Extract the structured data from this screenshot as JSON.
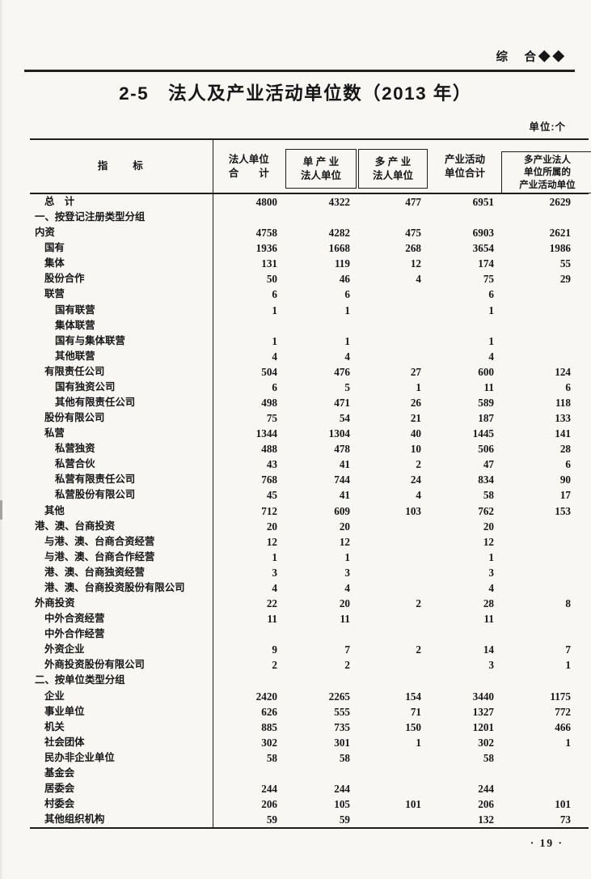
{
  "page": {
    "category_header": "综　合◆◆",
    "title": "2-5　法人及产业活动单位数（2013 年）",
    "unit_note": "单位:个",
    "page_number": "· 19 ·"
  },
  "table": {
    "headers": {
      "indicator": "指　　标",
      "col1": "法人单位\n合　　计",
      "col2": "单 产 业\n法人单位",
      "col3": "多 产 业\n法人单位",
      "col4": "产业活动\n单位合计",
      "col5": "多产业法人\n单位所属的\n产业活动单位"
    },
    "rows": [
      {
        "label": "总　计",
        "indent": 1,
        "values": [
          "4800",
          "4322",
          "477",
          "6951",
          "2629"
        ]
      },
      {
        "label": "一、按登记注册类型分组",
        "indent": 0,
        "values": [
          "",
          "",
          "",
          "",
          ""
        ]
      },
      {
        "label": "内资",
        "indent": 0,
        "values": [
          "4758",
          "4282",
          "475",
          "6903",
          "2621"
        ]
      },
      {
        "label": "国有",
        "indent": 1,
        "values": [
          "1936",
          "1668",
          "268",
          "3654",
          "1986"
        ]
      },
      {
        "label": "集体",
        "indent": 1,
        "values": [
          "131",
          "119",
          "12",
          "174",
          "55"
        ]
      },
      {
        "label": "股份合作",
        "indent": 1,
        "values": [
          "50",
          "46",
          "4",
          "75",
          "29"
        ]
      },
      {
        "label": "联营",
        "indent": 1,
        "values": [
          "6",
          "6",
          "",
          "6",
          ""
        ]
      },
      {
        "label": "国有联营",
        "indent": 2,
        "values": [
          "1",
          "1",
          "",
          "1",
          ""
        ]
      },
      {
        "label": "集体联营",
        "indent": 2,
        "values": [
          "",
          "",
          "",
          "",
          ""
        ]
      },
      {
        "label": "国有与集体联营",
        "indent": 2,
        "values": [
          "1",
          "1",
          "",
          "1",
          ""
        ]
      },
      {
        "label": "其他联营",
        "indent": 2,
        "values": [
          "4",
          "4",
          "",
          "4",
          ""
        ]
      },
      {
        "label": "有限责任公司",
        "indent": 1,
        "values": [
          "504",
          "476",
          "27",
          "600",
          "124"
        ]
      },
      {
        "label": "国有独资公司",
        "indent": 2,
        "values": [
          "6",
          "5",
          "1",
          "11",
          "6"
        ]
      },
      {
        "label": "其他有限责任公司",
        "indent": 2,
        "values": [
          "498",
          "471",
          "26",
          "589",
          "118"
        ]
      },
      {
        "label": "股份有限公司",
        "indent": 1,
        "values": [
          "75",
          "54",
          "21",
          "187",
          "133"
        ]
      },
      {
        "label": "私营",
        "indent": 1,
        "values": [
          "1344",
          "1304",
          "40",
          "1445",
          "141"
        ]
      },
      {
        "label": "私营独资",
        "indent": 2,
        "values": [
          "488",
          "478",
          "10",
          "506",
          "28"
        ]
      },
      {
        "label": "私营合伙",
        "indent": 2,
        "values": [
          "43",
          "41",
          "2",
          "47",
          "6"
        ]
      },
      {
        "label": "私营有限责任公司",
        "indent": 2,
        "values": [
          "768",
          "744",
          "24",
          "834",
          "90"
        ]
      },
      {
        "label": "私营股份有限公司",
        "indent": 2,
        "values": [
          "45",
          "41",
          "4",
          "58",
          "17"
        ]
      },
      {
        "label": "其他",
        "indent": 1,
        "values": [
          "712",
          "609",
          "103",
          "762",
          "153"
        ]
      },
      {
        "label": "港、澳、台商投资",
        "indent": 0,
        "values": [
          "20",
          "20",
          "",
          "20",
          ""
        ]
      },
      {
        "label": "与港、澳、台商合资经营",
        "indent": 1,
        "values": [
          "12",
          "12",
          "",
          "12",
          ""
        ]
      },
      {
        "label": "与港、澳、台商合作经营",
        "indent": 1,
        "values": [
          "1",
          "1",
          "",
          "1",
          ""
        ]
      },
      {
        "label": "港、澳、台商独资经营",
        "indent": 1,
        "values": [
          "3",
          "3",
          "",
          "3",
          ""
        ]
      },
      {
        "label": "港、澳、台商投资股份有限公司",
        "indent": 1,
        "values": [
          "4",
          "4",
          "",
          "4",
          ""
        ]
      },
      {
        "label": "外商投资",
        "indent": 0,
        "values": [
          "22",
          "20",
          "2",
          "28",
          "8"
        ]
      },
      {
        "label": "中外合资经营",
        "indent": 1,
        "values": [
          "11",
          "11",
          "",
          "11",
          ""
        ]
      },
      {
        "label": "中外合作经营",
        "indent": 1,
        "values": [
          "",
          "",
          "",
          "",
          ""
        ]
      },
      {
        "label": "外资企业",
        "indent": 1,
        "values": [
          "9",
          "7",
          "2",
          "14",
          "7"
        ]
      },
      {
        "label": "外商投资股份有限公司",
        "indent": 1,
        "values": [
          "2",
          "2",
          "",
          "3",
          "1"
        ]
      },
      {
        "label": "二、按单位类型分组",
        "indent": 0,
        "values": [
          "",
          "",
          "",
          "",
          ""
        ]
      },
      {
        "label": "企业",
        "indent": 1,
        "values": [
          "2420",
          "2265",
          "154",
          "3440",
          "1175"
        ]
      },
      {
        "label": "事业单位",
        "indent": 1,
        "values": [
          "626",
          "555",
          "71",
          "1327",
          "772"
        ]
      },
      {
        "label": "机关",
        "indent": 1,
        "values": [
          "885",
          "735",
          "150",
          "1201",
          "466"
        ]
      },
      {
        "label": "社会团体",
        "indent": 1,
        "values": [
          "302",
          "301",
          "1",
          "302",
          "1"
        ]
      },
      {
        "label": "民办非企业单位",
        "indent": 1,
        "values": [
          "58",
          "58",
          "",
          "58",
          ""
        ]
      },
      {
        "label": "基金会",
        "indent": 1,
        "values": [
          "",
          "",
          "",
          "",
          ""
        ]
      },
      {
        "label": "居委会",
        "indent": 1,
        "values": [
          "244",
          "244",
          "",
          "244",
          ""
        ]
      },
      {
        "label": "村委会",
        "indent": 1,
        "values": [
          "206",
          "105",
          "101",
          "206",
          "101"
        ]
      },
      {
        "label": "其他组织机构",
        "indent": 1,
        "values": [
          "59",
          "59",
          "",
          "132",
          "73"
        ]
      }
    ]
  }
}
